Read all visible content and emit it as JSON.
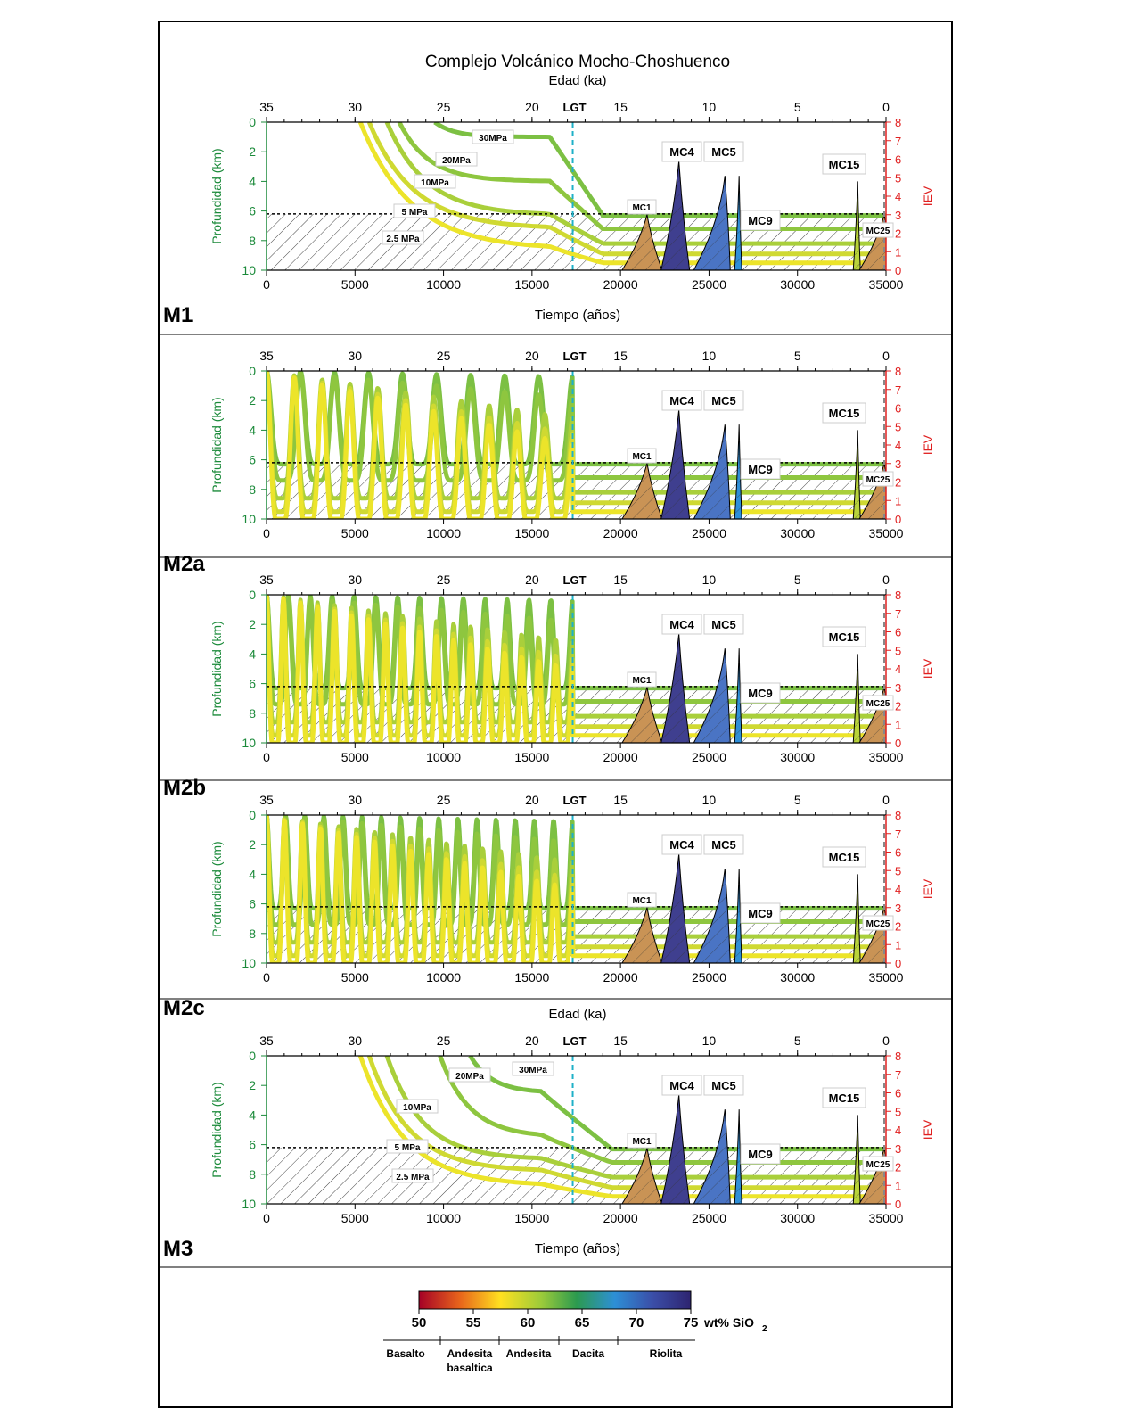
{
  "title": "Complejo Volcánico Mocho-Choshuenco",
  "top_axis_label": "Edad (ka)",
  "bottom_axis_label": "Tiempo (años)",
  "left_axis_label": "Profundidad (km)",
  "right_axis_label": "IEV",
  "lgt_label": "LGT",
  "panels": [
    {
      "id": "M1",
      "label": "M1",
      "show_top_label": true,
      "show_bottom_label": true,
      "eruption": "single"
    },
    {
      "id": "M2a",
      "label": "M2a",
      "show_top_label": false,
      "show_bottom_label": false,
      "eruption": "cyclic",
      "cycles_young": 9,
      "cycles_old": 11
    },
    {
      "id": "M2b",
      "label": "M2b",
      "show_top_label": false,
      "show_bottom_label": false,
      "eruption": "cyclic",
      "cycles_young": 14,
      "cycles_old": 18
    },
    {
      "id": "M2c",
      "label": "M2c",
      "show_top_label": false,
      "show_bottom_label": false,
      "eruption": "cyclic",
      "cycles_young": 16,
      "cycles_old": 17
    },
    {
      "id": "M3",
      "label": "M3",
      "show_top_label": true,
      "show_bottom_label": true,
      "eruption": "steps"
    }
  ],
  "pressure_labels": [
    "30MPa",
    "20MPa",
    "10MPa",
    "5 MPa",
    "2.5 MPa"
  ],
  "eruption_labels": [
    "MC1",
    "MC4",
    "MC5",
    "MC9",
    "MC15",
    "MC25"
  ],
  "colorbar": {
    "ticks": [
      "50",
      "55",
      "60",
      "65",
      "70",
      "75"
    ],
    "unit_label": "wt% SiO",
    "unit_sub": "2",
    "rock_types": [
      "Basalto",
      "Andesita",
      "basaltica",
      "Andesita",
      "Dacita",
      "Riolita"
    ]
  },
  "chart_data": {
    "type": "line",
    "x_bottom": {
      "label": "Tiempo (años)",
      "range": [
        0,
        35000
      ],
      "ticks": [
        0,
        5000,
        10000,
        15000,
        20000,
        25000,
        30000,
        35000
      ]
    },
    "x_top": {
      "label": "Edad (ka)",
      "range": [
        35,
        0
      ],
      "ticks": [
        35,
        30,
        25,
        20,
        15,
        10,
        5,
        0
      ]
    },
    "y_left": {
      "label": "Profundidad (km)",
      "range": [
        10,
        0
      ],
      "ticks": [
        0,
        2,
        4,
        6,
        8,
        10
      ]
    },
    "y_right": {
      "label": "IEV",
      "range": [
        0,
        8
      ],
      "ticks": [
        0,
        1,
        2,
        3,
        4,
        5,
        6,
        7,
        8
      ]
    },
    "lgt_time": 17300,
    "reservoir_top_depth_km": 6.2,
    "series": [
      {
        "name": "30MPa",
        "final_depth_km": 6.3,
        "sio2": 63
      },
      {
        "name": "20MPa",
        "final_depth_km": 7.2,
        "sio2": 61.5
      },
      {
        "name": "10MPa",
        "final_depth_km": 8.2,
        "sio2": 60
      },
      {
        "name": "5 MPa",
        "final_depth_km": 8.9,
        "sio2": 58.5
      },
      {
        "name": "2.5 MPa",
        "final_depth_km": 9.5,
        "sio2": 57
      }
    ],
    "eruptions": [
      {
        "name": "MC1",
        "time": 21500,
        "iev": 3.0,
        "sio2": 55
      },
      {
        "name": "MC4",
        "time": 23300,
        "iev": 5.9,
        "sio2": 73
      },
      {
        "name": "MC5",
        "time": 25900,
        "iev": 5.1,
        "sio2": 69
      },
      {
        "name": "MC9",
        "time": 26700,
        "iev": 5.1,
        "sio2": 67
      },
      {
        "name": "MC15",
        "time": 33400,
        "iev": 4.8,
        "sio2": 60
      },
      {
        "name": "MC25",
        "time": 34900,
        "iev": 3.0,
        "sio2": 55
      }
    ],
    "colorscale": {
      "range": [
        50,
        75
      ],
      "ticks": [
        50,
        55,
        60,
        65,
        70,
        75
      ],
      "label": "wt% SiO2"
    }
  }
}
